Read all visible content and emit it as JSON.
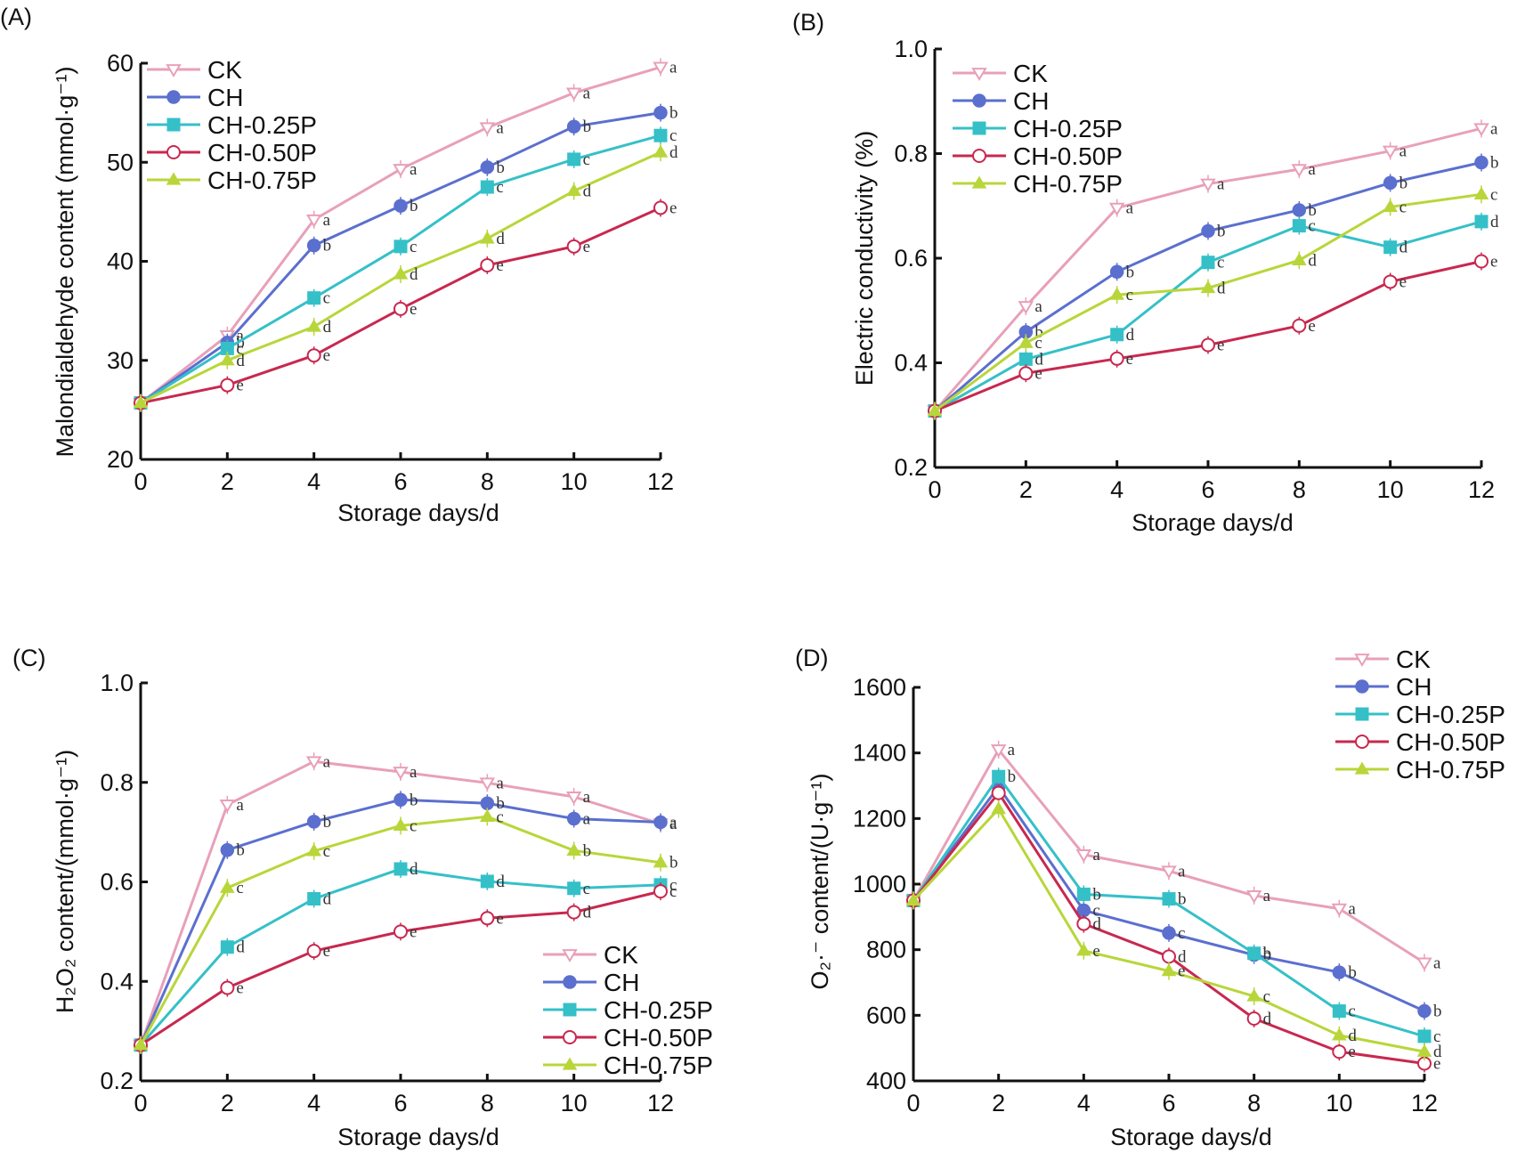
{
  "chart_data": [
    {
      "type": "line",
      "panel_label": "(A)",
      "title": "",
      "xlabel": "Storage days/d",
      "ylabel": "Malondialdehyde content (mmol·g⁻¹)",
      "x": [
        0,
        2,
        4,
        6,
        8,
        10,
        12
      ],
      "xticks": [
        "0",
        "2",
        "4",
        "6",
        "8",
        "10",
        "12"
      ],
      "yticks": [
        "20",
        "30",
        "40",
        "50",
        "60"
      ],
      "xlim": [
        0,
        12
      ],
      "ylim": [
        20,
        60
      ],
      "grid": false,
      "legend_position": "top-left",
      "series": [
        {
          "name": "CK",
          "values": [
            25.7,
            32.5,
            44.2,
            49.3,
            53.5,
            57.0,
            59.6
          ],
          "letters": [
            "",
            "a",
            "a",
            "a",
            "a",
            "a",
            "a"
          ]
        },
        {
          "name": "CH",
          "values": [
            25.7,
            31.8,
            41.6,
            45.6,
            49.5,
            53.6,
            55.0
          ],
          "letters": [
            "",
            "b",
            "b",
            "b",
            "b",
            "b",
            "b"
          ]
        },
        {
          "name": "CH-0.25P",
          "values": [
            25.7,
            31.2,
            36.3,
            41.5,
            47.5,
            50.3,
            52.7
          ],
          "letters": [
            "",
            "c",
            "c",
            "c",
            "c",
            "c",
            "c"
          ]
        },
        {
          "name": "CH-0.50P",
          "values": [
            25.7,
            27.5,
            30.5,
            35.2,
            39.6,
            41.5,
            45.4
          ],
          "letters": [
            "",
            "e",
            "e",
            "e",
            "e",
            "e",
            "e"
          ]
        },
        {
          "name": "CH-0.75P",
          "values": [
            25.7,
            30.0,
            33.4,
            38.7,
            42.3,
            47.1,
            51.0
          ],
          "letters": [
            "",
            "d",
            "d",
            "d",
            "d",
            "d",
            "d"
          ]
        }
      ]
    },
    {
      "type": "line",
      "panel_label": "(B)",
      "title": "",
      "xlabel": "Storage days/d",
      "ylabel": "Electric conductivity (%)",
      "x": [
        0,
        2,
        4,
        6,
        8,
        10,
        12
      ],
      "xticks": [
        "0",
        "2",
        "4",
        "6",
        "8",
        "10",
        "12"
      ],
      "yticks": [
        "0.2",
        "0.4",
        "0.6",
        "0.8",
        "1.0"
      ],
      "xlim": [
        0,
        12
      ],
      "ylim": [
        0.2,
        1.0
      ],
      "grid": false,
      "legend_position": "top-left",
      "series": [
        {
          "name": "CK",
          "values": [
            0.308,
            0.508,
            0.696,
            0.742,
            0.77,
            0.805,
            0.848
          ],
          "letters": [
            "",
            "a",
            "a",
            "a",
            "a",
            "a",
            "a"
          ]
        },
        {
          "name": "CH",
          "values": [
            0.308,
            0.459,
            0.574,
            0.652,
            0.692,
            0.744,
            0.783
          ],
          "letters": [
            "",
            "b",
            "b",
            "b",
            "b",
            "b",
            "b"
          ]
        },
        {
          "name": "CH-0.25P",
          "values": [
            0.308,
            0.407,
            0.454,
            0.592,
            0.662,
            0.621,
            0.67
          ],
          "letters": [
            "",
            "d",
            "d",
            "c",
            "c",
            "d",
            "d"
          ]
        },
        {
          "name": "CH-0.50P",
          "values": [
            0.308,
            0.38,
            0.408,
            0.434,
            0.471,
            0.555,
            0.594
          ],
          "letters": [
            "",
            "e",
            "e",
            "e",
            "e",
            "e",
            "e"
          ]
        },
        {
          "name": "CH-0.75P",
          "values": [
            0.308,
            0.438,
            0.53,
            0.543,
            0.596,
            0.698,
            0.722
          ],
          "letters": [
            "",
            "c",
            "c",
            "d",
            "d",
            "c",
            "c"
          ]
        }
      ]
    },
    {
      "type": "line",
      "panel_label": "(C)",
      "title": "",
      "xlabel": "Storage days/d",
      "ylabel": "H₂O₂ content/(mmol·g⁻¹)",
      "x": [
        0,
        2,
        4,
        6,
        8,
        10,
        12
      ],
      "xticks": [
        "0",
        "2",
        "4",
        "6",
        "8",
        "10",
        "12"
      ],
      "yticks": [
        "0.2",
        "0.4",
        "0.6",
        "0.8",
        "1.0"
      ],
      "xlim": [
        0,
        12
      ],
      "ylim": [
        0.2,
        1.0
      ],
      "grid": false,
      "legend_position": "bottom-right",
      "series": [
        {
          "name": "CK",
          "values": [
            0.272,
            0.755,
            0.842,
            0.821,
            0.799,
            0.771,
            0.717
          ],
          "letters": [
            "",
            "a",
            "a",
            "a",
            "a",
            "a",
            "a"
          ]
        },
        {
          "name": "CH",
          "values": [
            0.272,
            0.664,
            0.721,
            0.765,
            0.758,
            0.727,
            0.72
          ],
          "letters": [
            "",
            "b",
            "b",
            "b",
            "b",
            "a",
            "a"
          ]
        },
        {
          "name": "CH-0.25P",
          "values": [
            0.272,
            0.469,
            0.566,
            0.626,
            0.601,
            0.587,
            0.594
          ],
          "letters": [
            "",
            "d",
            "d",
            "d",
            "d",
            "c",
            "c"
          ]
        },
        {
          "name": "CH-0.50P",
          "values": [
            0.272,
            0.387,
            0.461,
            0.5,
            0.527,
            0.539,
            0.581
          ],
          "letters": [
            "",
            "e",
            "e",
            "e",
            "e",
            "d",
            "c"
          ]
        },
        {
          "name": "CH-0.75P",
          "values": [
            0.272,
            0.588,
            0.662,
            0.713,
            0.731,
            0.663,
            0.639
          ],
          "letters": [
            "",
            "c",
            "c",
            "c",
            "c",
            "b",
            "b"
          ]
        }
      ]
    },
    {
      "type": "line",
      "panel_label": "(D)",
      "title": "",
      "xlabel": "Storage days/d",
      "ylabel": "O₂·⁻ content/(U·g⁻¹)",
      "x": [
        0,
        2,
        4,
        6,
        8,
        10,
        12
      ],
      "xticks": [
        "0",
        "2",
        "4",
        "6",
        "8",
        "10",
        "12"
      ],
      "yticks": [
        "400",
        "600",
        "800",
        "1000",
        "1200",
        "1400",
        "1600"
      ],
      "xlim": [
        0,
        12
      ],
      "ylim": [
        400,
        1600
      ],
      "grid": false,
      "legend_position": "top-right",
      "series": [
        {
          "name": "CK",
          "values": [
            950,
            1410,
            1090,
            1040,
            965,
            925,
            760
          ],
          "letters": [
            "",
            "a",
            "a",
            "a",
            "a",
            "a",
            "a"
          ]
        },
        {
          "name": "CH",
          "values": [
            950,
            1297,
            920,
            851,
            784,
            731,
            613
          ],
          "letters": [
            "",
            "",
            "c",
            "c",
            "b",
            "b",
            "b"
          ]
        },
        {
          "name": "CH-0.25P",
          "values": [
            950,
            1328,
            969,
            955,
            789,
            613,
            536
          ],
          "letters": [
            "",
            "b",
            "b",
            "b",
            "b",
            "c",
            "c"
          ]
        },
        {
          "name": "CH-0.50P",
          "values": [
            950,
            1278,
            879,
            779,
            590,
            489,
            453
          ],
          "letters": [
            "",
            "",
            "d",
            "d",
            "d",
            "e",
            "e"
          ]
        },
        {
          "name": "CH-0.75P",
          "values": [
            950,
            1229,
            797,
            735,
            658,
            539,
            489
          ],
          "letters": [
            "",
            "",
            "e",
            "e",
            "c",
            "d",
            "d"
          ]
        }
      ]
    }
  ],
  "series_styles": [
    {
      "name": "CK",
      "color": "#e8a0b8",
      "marker": "triangle-down-open"
    },
    {
      "name": "CH",
      "color": "#5b6fcf",
      "marker": "circle-filled"
    },
    {
      "name": "CH-0.25P",
      "color": "#35c0c8",
      "marker": "square-filled"
    },
    {
      "name": "CH-0.50P",
      "color": "#c8284f",
      "marker": "circle-open"
    },
    {
      "name": "CH-0.75P",
      "color": "#b8d63a",
      "marker": "triangle-up-filled"
    }
  ]
}
